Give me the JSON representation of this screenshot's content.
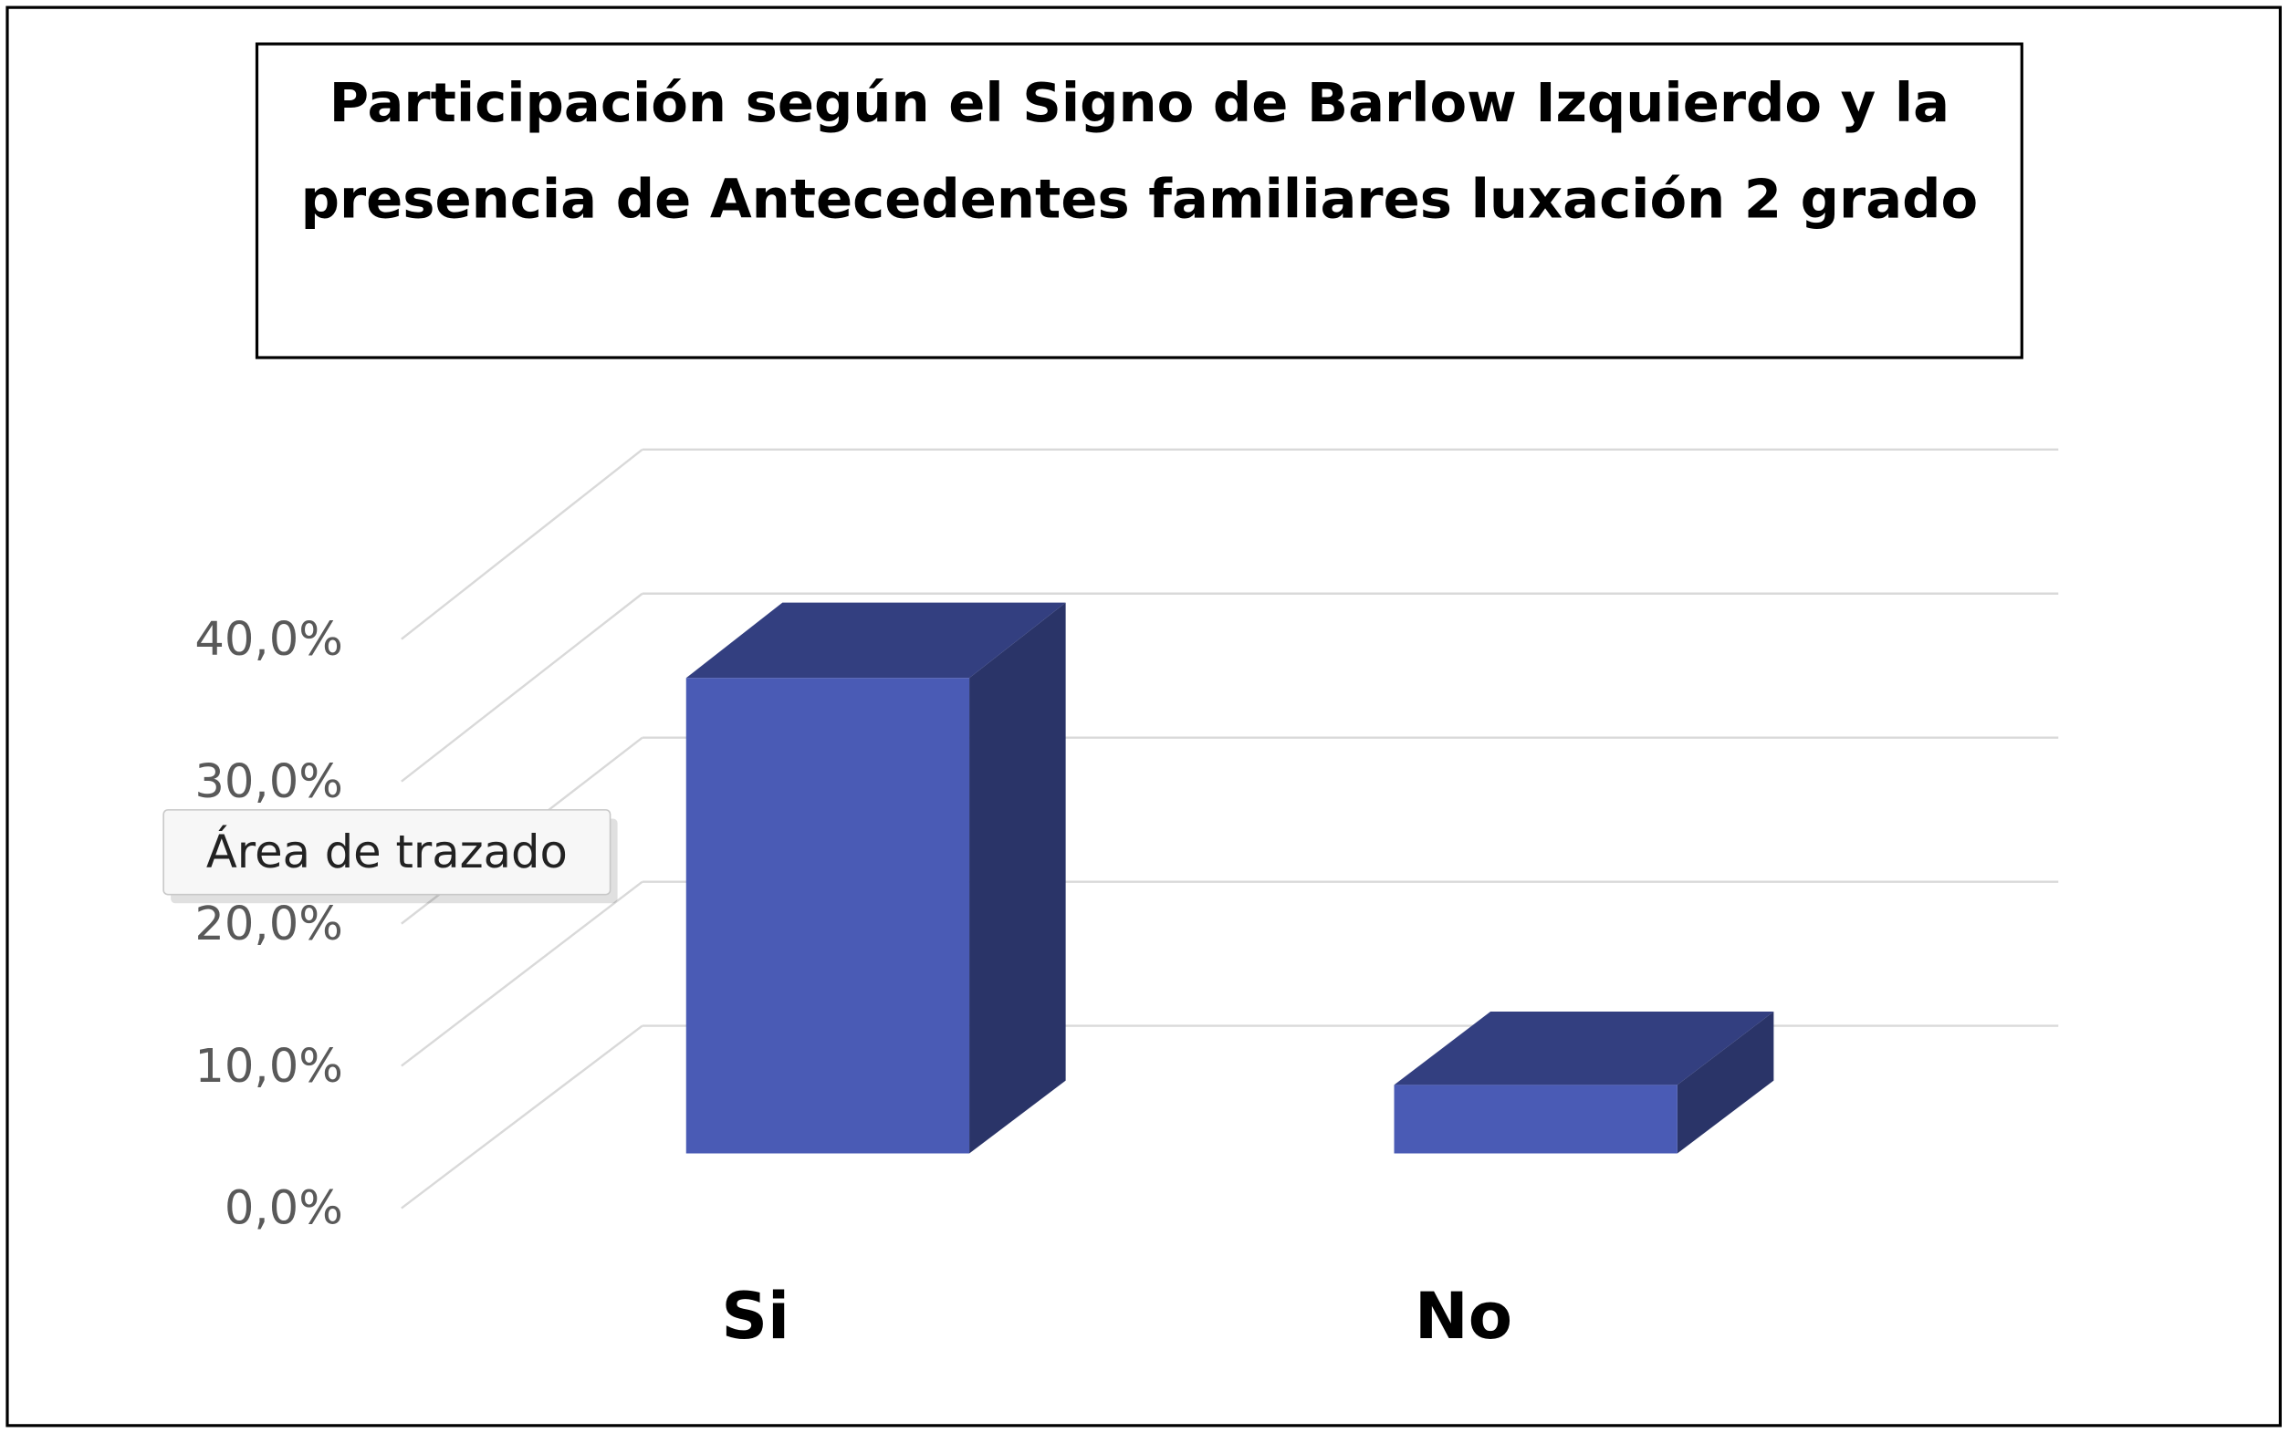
{
  "chart_data": {
    "type": "bar3d",
    "title": "Participación según el Signo de Barlow Izquierdo y la presencia de Antecedentes familiares luxación 2 grado",
    "categories": [
      "Si",
      "No"
    ],
    "values": [
      33.3,
      4.8
    ],
    "colors": {
      "front": "#4a5bb5",
      "top": "#333f80",
      "side": "#2a3468"
    },
    "ylim": [
      0,
      40
    ],
    "yticks": [
      {
        "value": 0,
        "label": "0,0%"
      },
      {
        "value": 10,
        "label": "10,0%"
      },
      {
        "value": 20,
        "label": "20,0%"
      },
      {
        "value": 30,
        "label": "30,0%"
      },
      {
        "value": 40,
        "label": "40,0%"
      }
    ],
    "grid": true,
    "tooltip": "Área de trazado"
  }
}
